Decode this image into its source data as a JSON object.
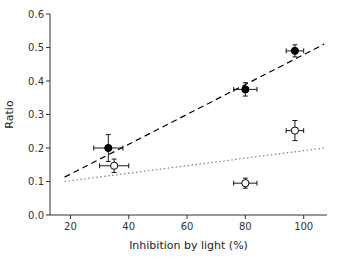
{
  "chart_data": {
    "type": "scatter",
    "x_label": "Inhibition by light (%)",
    "y_label": "Ratio",
    "xlim": [
      13,
      108
    ],
    "ylim": [
      0.0,
      0.6
    ],
    "xticks": [
      20,
      40,
      60,
      80,
      100
    ],
    "yticks": [
      {
        "value": 0.0,
        "label": "0.0"
      },
      0.1,
      0.2,
      0.3,
      0.4,
      0.5,
      0.6
    ],
    "grid": false,
    "series": [
      {
        "type": "line",
        "color": "black",
        "line_style": "dashed",
        "x": [
          18,
          107
        ],
        "values": [
          0.113,
          0.51
        ]
      },
      {
        "type": "line",
        "color": "gray",
        "line_style": "dotted",
        "x": [
          18,
          107
        ],
        "values": [
          0.1,
          0.2
        ]
      },
      {
        "type": "scatter",
        "color": "black",
        "marker": "filled_circle",
        "x": [
          33,
          80,
          97
        ],
        "values": [
          0.2,
          0.375,
          0.49
        ],
        "x_err": [
          5,
          4,
          3
        ],
        "y_err": [
          0.04,
          0.02,
          0.018
        ]
      },
      {
        "type": "scatter",
        "color": "black",
        "marker": "open_circle",
        "x": [
          35,
          80,
          97
        ],
        "values": [
          0.147,
          0.095,
          0.252
        ],
        "x_err": [
          5,
          4,
          3
        ],
        "y_err": [
          0.02,
          0.015,
          0.03
        ]
      }
    ]
  }
}
